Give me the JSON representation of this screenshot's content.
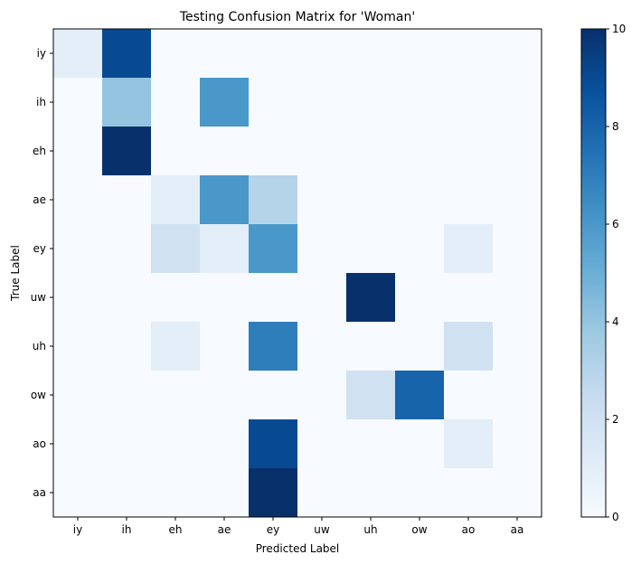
{
  "chart_data": {
    "type": "heatmap",
    "title": "Testing Confusion Matrix for 'Woman'",
    "xlabel": "Predicted Label",
    "ylabel": "True Label",
    "x_categories": [
      "iy",
      "ih",
      "eh",
      "ae",
      "ey",
      "uw",
      "uh",
      "ow",
      "ao",
      "aa"
    ],
    "y_categories": [
      "iy",
      "ih",
      "eh",
      "ae",
      "ey",
      "uw",
      "uh",
      "ow",
      "ao",
      "aa"
    ],
    "values": [
      [
        1,
        9,
        0,
        0,
        0,
        0,
        0,
        0,
        0,
        0
      ],
      [
        0,
        4,
        0,
        6,
        0,
        0,
        0,
        0,
        0,
        0
      ],
      [
        0,
        10,
        0,
        0,
        0,
        0,
        0,
        0,
        0,
        0
      ],
      [
        0,
        0,
        1,
        6,
        3,
        0,
        0,
        0,
        0,
        0
      ],
      [
        0,
        0,
        2,
        1,
        6,
        0,
        0,
        0,
        1,
        0
      ],
      [
        0,
        0,
        0,
        0,
        0,
        0,
        10,
        0,
        0,
        0
      ],
      [
        0,
        0,
        1,
        0,
        7,
        0,
        0,
        0,
        2,
        0
      ],
      [
        0,
        0,
        0,
        0,
        0,
        0,
        2,
        8,
        0,
        0
      ],
      [
        0,
        0,
        0,
        0,
        9,
        0,
        0,
        0,
        1,
        0
      ],
      [
        0,
        0,
        0,
        0,
        10,
        0,
        0,
        0,
        0,
        0
      ]
    ],
    "colormap": "Blues",
    "colorbar": {
      "min": 0,
      "max": 10,
      "ticks": [
        "0",
        "2",
        "4",
        "6",
        "8",
        "10"
      ]
    },
    "colors": [
      "#f7fbff",
      "#deebf7",
      "#c6dbef",
      "#9ecae1",
      "#6baed6",
      "#4292c6",
      "#2171b5",
      "#08519c",
      "#08306b"
    ]
  }
}
